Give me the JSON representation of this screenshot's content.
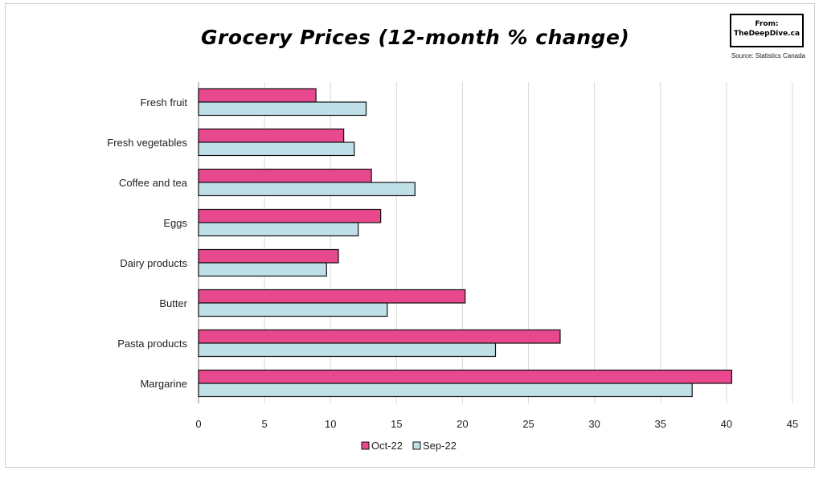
{
  "header": {
    "title": "Grocery Prices (12-month % change)",
    "brand_from": "From:",
    "brand_site": "TheDeepDive.ca",
    "source": "Source: Statistics Canada"
  },
  "colors": {
    "oct22": "#e8488e",
    "sep22": "#bfe0e6",
    "bar_stroke": "#111111",
    "grid": "#d9d9d9"
  },
  "chart_data": {
    "type": "bar",
    "orientation": "horizontal",
    "categories": [
      "Fresh fruit",
      "Fresh vegetables",
      "Coffee and tea",
      "Eggs",
      "Dairy products",
      "Butter",
      "Pasta products",
      "Margarine"
    ],
    "series": [
      {
        "name": "Oct-22",
        "values": [
          8.9,
          11.0,
          13.1,
          13.8,
          10.6,
          20.2,
          27.4,
          40.4
        ]
      },
      {
        "name": "Sep-22",
        "values": [
          12.7,
          11.8,
          16.4,
          12.1,
          9.7,
          14.3,
          22.5,
          37.4
        ]
      }
    ],
    "xlim": [
      0,
      45
    ],
    "xticks": [
      "0",
      "5",
      "10",
      "15",
      "20",
      "25",
      "30",
      "35",
      "40",
      "45"
    ],
    "grid": true,
    "legend": "bottom"
  }
}
